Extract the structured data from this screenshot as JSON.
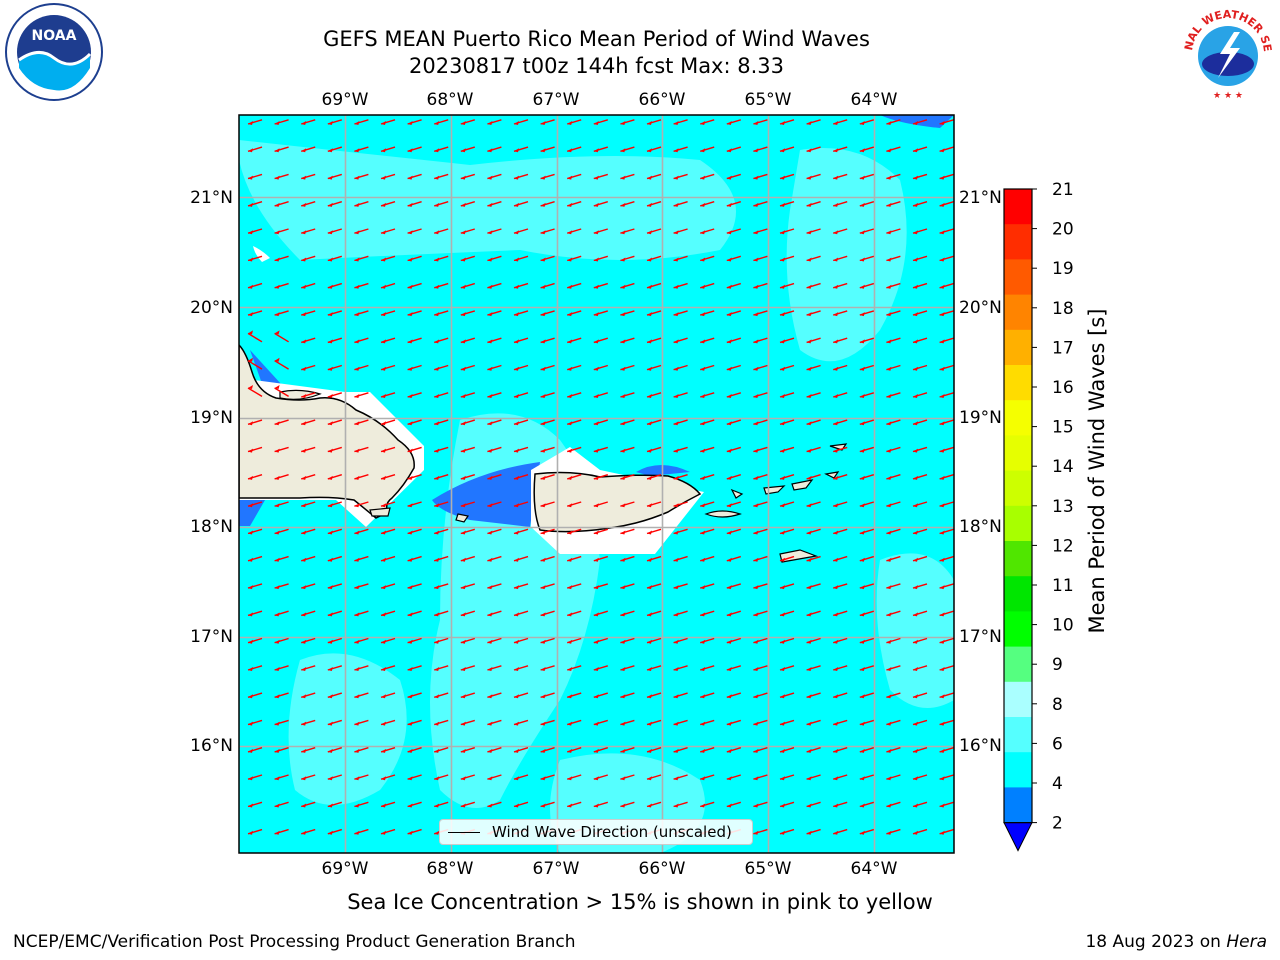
{
  "header": {
    "title_line1": "GEFS MEAN Puerto Rico Mean Period of Wind Waves",
    "title_line2": "20230817 t00z 144h fcst   Max: 8.33"
  },
  "logos": {
    "noaa": "NOAA",
    "nws": "NATIONAL WEATHER SERVICE"
  },
  "map": {
    "lon_labels": [
      "69°W",
      "68°W",
      "67°W",
      "66°W",
      "65°W",
      "64°W"
    ],
    "lat_labels": [
      "21°N",
      "20°N",
      "19°N",
      "18°N",
      "17°N",
      "16°N"
    ],
    "lon_range": [
      -70.0,
      -63.25
    ],
    "lat_range": [
      15.05,
      21.75
    ],
    "ocean_color": "#00ffff",
    "high_period_color": "#55ffff",
    "low_period_color": "#2176ff",
    "land_color": "#eeecdc",
    "arrow_color": "#ff0000",
    "arrow_direction": "toward west-southwest"
  },
  "legend": {
    "label": "Wind Wave Direction (unscaled)"
  },
  "colorbar": {
    "label": "Mean Period of Wind Waves [s]",
    "ticks": [
      "21",
      "20",
      "19",
      "18",
      "17",
      "16",
      "15",
      "14",
      "13",
      "12",
      "11",
      "10",
      "9",
      "8",
      "6",
      "4",
      "2"
    ],
    "colors": [
      "#ff0000",
      "#ff2d00",
      "#ff5a00",
      "#ff8400",
      "#ffb000",
      "#ffdc00",
      "#f5ff00",
      "#e6ff00",
      "#cdff00",
      "#a8ff00",
      "#50e600",
      "#00e600",
      "#00ff00",
      "#55ff80",
      "#aaffff",
      "#55ffff",
      "#00ffff",
      "#0080ff",
      "#0000ff"
    ]
  },
  "footer": {
    "note": "Sea Ice Concentration > 15% is shown in pink to yellow",
    "left": "NCEP/EMC/Verification Post Processing Product Generation Branch",
    "date": "18 Aug 2023 on",
    "machine": "Hera"
  }
}
